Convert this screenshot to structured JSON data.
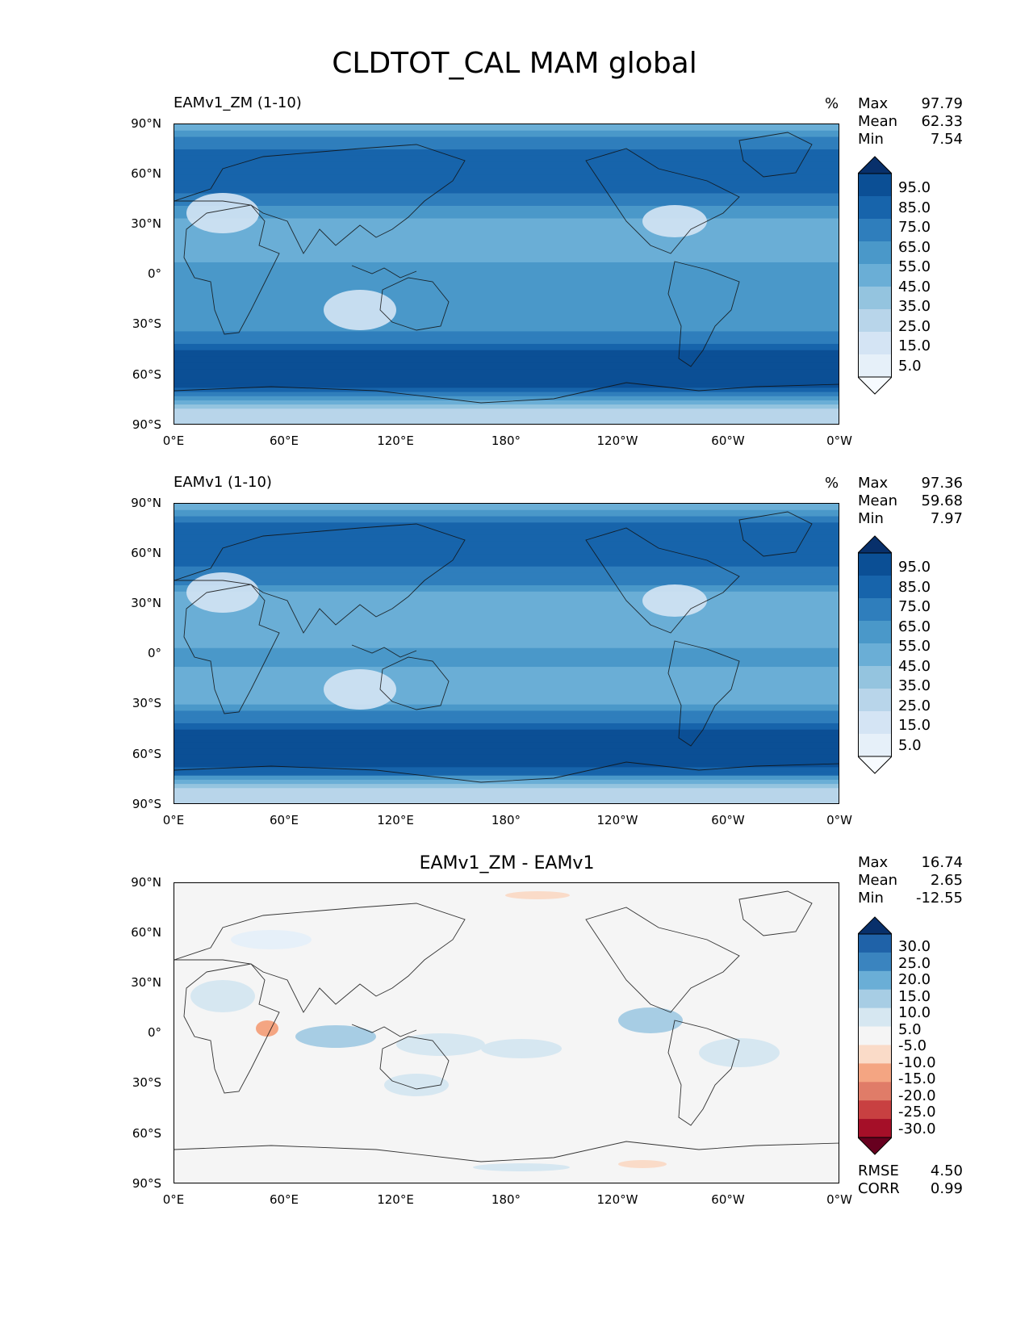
{
  "figure_title": "CLDTOT_CAL MAM global",
  "chart_data": [
    {
      "type": "heatmap",
      "panel": "test",
      "title": "EAMv1_ZM (1-10)",
      "units": "%",
      "stats": {
        "max_label": "Max",
        "max": "97.79",
        "mean_label": "Mean",
        "mean": "62.33",
        "min_label": "Min",
        "min": "7.54"
      },
      "x_ticks": [
        "0°E",
        "60°E",
        "120°E",
        "180°",
        "120°W",
        "60°W",
        "0°W"
      ],
      "y_ticks": [
        "90°N",
        "60°N",
        "30°N",
        "0°",
        "30°S",
        "60°S",
        "90°S"
      ],
      "colorbar_levels": [
        "95.0",
        "85.0",
        "75.0",
        "65.0",
        "55.0",
        "45.0",
        "35.0",
        "25.0",
        "15.0",
        "5.0"
      ],
      "colorbar_colors": [
        "#08306b",
        "#0b4f95",
        "#1764ab",
        "#2f7ebc",
        "#4a98c9",
        "#6aaed6",
        "#94c4df",
        "#b8d5ea",
        "#d4e4f4",
        "#e6f0f9",
        "#f7fbff"
      ],
      "zonal_profile": [
        {
          "lat": 90,
          "value": 45
        },
        {
          "lat": 75,
          "value": 78
        },
        {
          "lat": 60,
          "value": 80
        },
        {
          "lat": 45,
          "value": 72
        },
        {
          "lat": 30,
          "value": 48
        },
        {
          "lat": 15,
          "value": 50
        },
        {
          "lat": 0,
          "value": 62
        },
        {
          "lat": -15,
          "value": 55
        },
        {
          "lat": -30,
          "value": 58
        },
        {
          "lat": -45,
          "value": 85
        },
        {
          "lat": -60,
          "value": 96
        },
        {
          "lat": -70,
          "value": 80
        },
        {
          "lat": -80,
          "value": 30
        },
        {
          "lat": -90,
          "value": 35
        }
      ]
    },
    {
      "type": "heatmap",
      "panel": "reference",
      "title": "EAMv1 (1-10)",
      "units": "%",
      "stats": {
        "max_label": "Max",
        "max": "97.36",
        "mean_label": "Mean",
        "mean": "59.68",
        "min_label": "Min",
        "min": "7.97"
      },
      "x_ticks": [
        "0°E",
        "60°E",
        "120°E",
        "180°",
        "120°W",
        "60°W",
        "0°W"
      ],
      "y_ticks": [
        "90°N",
        "60°N",
        "30°N",
        "0°",
        "30°S",
        "60°S",
        "90°S"
      ],
      "colorbar_levels": [
        "95.0",
        "85.0",
        "75.0",
        "65.0",
        "55.0",
        "45.0",
        "35.0",
        "25.0",
        "15.0",
        "5.0"
      ],
      "colorbar_colors": [
        "#08306b",
        "#0b4f95",
        "#1764ab",
        "#2f7ebc",
        "#4a98c9",
        "#6aaed6",
        "#94c4df",
        "#b8d5ea",
        "#d4e4f4",
        "#e6f0f9",
        "#f7fbff"
      ],
      "zonal_profile": [
        {
          "lat": 90,
          "value": 48
        },
        {
          "lat": 75,
          "value": 80
        },
        {
          "lat": 60,
          "value": 78
        },
        {
          "lat": 45,
          "value": 70
        },
        {
          "lat": 30,
          "value": 45
        },
        {
          "lat": 15,
          "value": 46
        },
        {
          "lat": 0,
          "value": 58
        },
        {
          "lat": -15,
          "value": 50
        },
        {
          "lat": -30,
          "value": 55
        },
        {
          "lat": -45,
          "value": 84
        },
        {
          "lat": -60,
          "value": 96
        },
        {
          "lat": -70,
          "value": 82
        },
        {
          "lat": -80,
          "value": 32
        },
        {
          "lat": -90,
          "value": 35
        }
      ]
    },
    {
      "type": "heatmap",
      "panel": "difference",
      "title": "EAMv1_ZM - EAMv1",
      "stats": {
        "max_label": "Max",
        "max": "16.74",
        "mean_label": "Mean",
        "mean": "2.65",
        "min_label": "Min",
        "min": "-12.55"
      },
      "metrics": {
        "rmse_label": "RMSE",
        "rmse": "4.50",
        "corr_label": "CORR",
        "corr": "0.99"
      },
      "x_ticks": [
        "0°E",
        "60°E",
        "120°E",
        "180°",
        "120°W",
        "60°W",
        "0°W"
      ],
      "y_ticks": [
        "90°N",
        "60°N",
        "30°N",
        "0°",
        "30°S",
        "60°S",
        "90°S"
      ],
      "colorbar_levels": [
        "30.0",
        "25.0",
        "20.0",
        "15.0",
        "10.0",
        "5.0",
        "-5.0",
        "-10.0",
        "-15.0",
        "-20.0",
        "-25.0",
        "-30.0"
      ],
      "colorbar_colors": [
        "#08306b",
        "#1f62a8",
        "#3a84bf",
        "#6aaed6",
        "#a7cde4",
        "#d6e7f1",
        "#f5f5f5",
        "#fadbc8",
        "#f4a582",
        "#e07c68",
        "#c84041",
        "#a50f28",
        "#67001f"
      ]
    }
  ]
}
